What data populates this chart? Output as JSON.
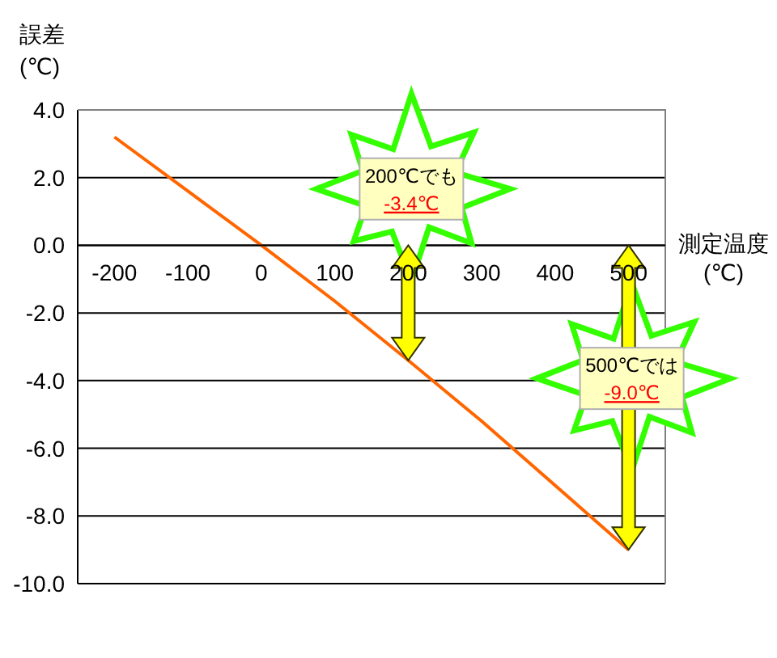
{
  "chart_data": {
    "type": "line",
    "xlabel": "測定温度\n(℃)",
    "ylabel": "誤差\n(℃)",
    "x": [
      -200,
      -100,
      0,
      100,
      200,
      300,
      400,
      500
    ],
    "series": [
      {
        "color": "#ff6600",
        "values": [
          3.2,
          1.6,
          0,
          -1.65,
          -3.4,
          -5.2,
          -7.1,
          -9.0
        ]
      }
    ],
    "xlim": [
      -250,
      550
    ],
    "xticks": [
      -200,
      -100,
      0,
      100,
      200,
      300,
      400,
      500
    ],
    "ylim": [
      -10,
      4
    ],
    "yticks": [
      {
        "value": 4,
        "label": "4.0"
      },
      {
        "value": 2,
        "label": "2.0"
      },
      {
        "value": 0,
        "label": "0.0"
      },
      {
        "value": -2,
        "label": "-2.0"
      },
      {
        "value": -4,
        "label": "-4.0"
      },
      {
        "value": -6,
        "label": "-6.0"
      },
      {
        "value": -8,
        "label": "-8.0"
      },
      {
        "value": -10,
        "label": "-10.0"
      }
    ],
    "grid": "y",
    "marker": "none",
    "annotations": [
      "200℃でも",
      "-3.4℃",
      "500℃では",
      "-9.0℃"
    ]
  }
}
